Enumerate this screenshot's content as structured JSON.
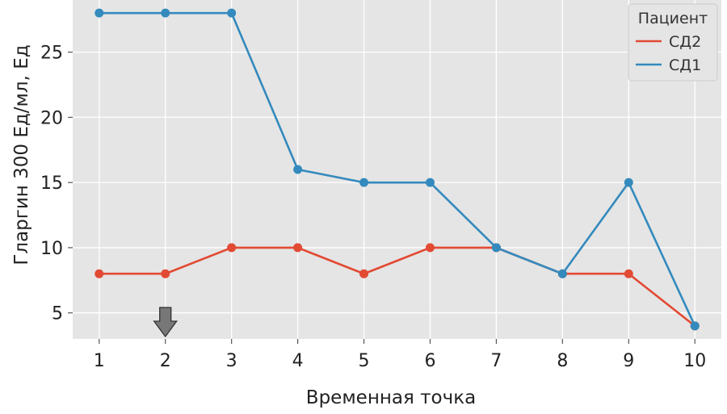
{
  "chart_data": {
    "type": "line",
    "xlabel": "Временная точка",
    "ylabel": "Гларгин 300 Ед/мл, Ед",
    "x": [
      1,
      2,
      3,
      4,
      5,
      6,
      7,
      8,
      9,
      10
    ],
    "x_tick_labels": [
      "1",
      "2",
      "3",
      "4",
      "5",
      "6",
      "7",
      "8",
      "9",
      "10"
    ],
    "y_ticks": [
      5,
      10,
      15,
      20,
      25
    ],
    "y_tick_labels": [
      "5",
      "10",
      "15",
      "20",
      "25"
    ],
    "xlim": [
      0.6,
      10.4
    ],
    "ylim": [
      3,
      29
    ],
    "grid": true,
    "legend": {
      "title": "Пациент",
      "placement": "top-right"
    },
    "series": [
      {
        "name": "СД2",
        "color": "#E24A33",
        "values": [
          8,
          8,
          10,
          10,
          8,
          10,
          10,
          8,
          8,
          4
        ]
      },
      {
        "name": "СД1",
        "color": "#348ABD",
        "values": [
          28,
          28,
          28,
          16,
          15,
          15,
          10,
          8,
          15,
          4
        ]
      }
    ],
    "annotations": [
      {
        "type": "arrow-down",
        "x": 2,
        "color": "#777777"
      }
    ]
  }
}
